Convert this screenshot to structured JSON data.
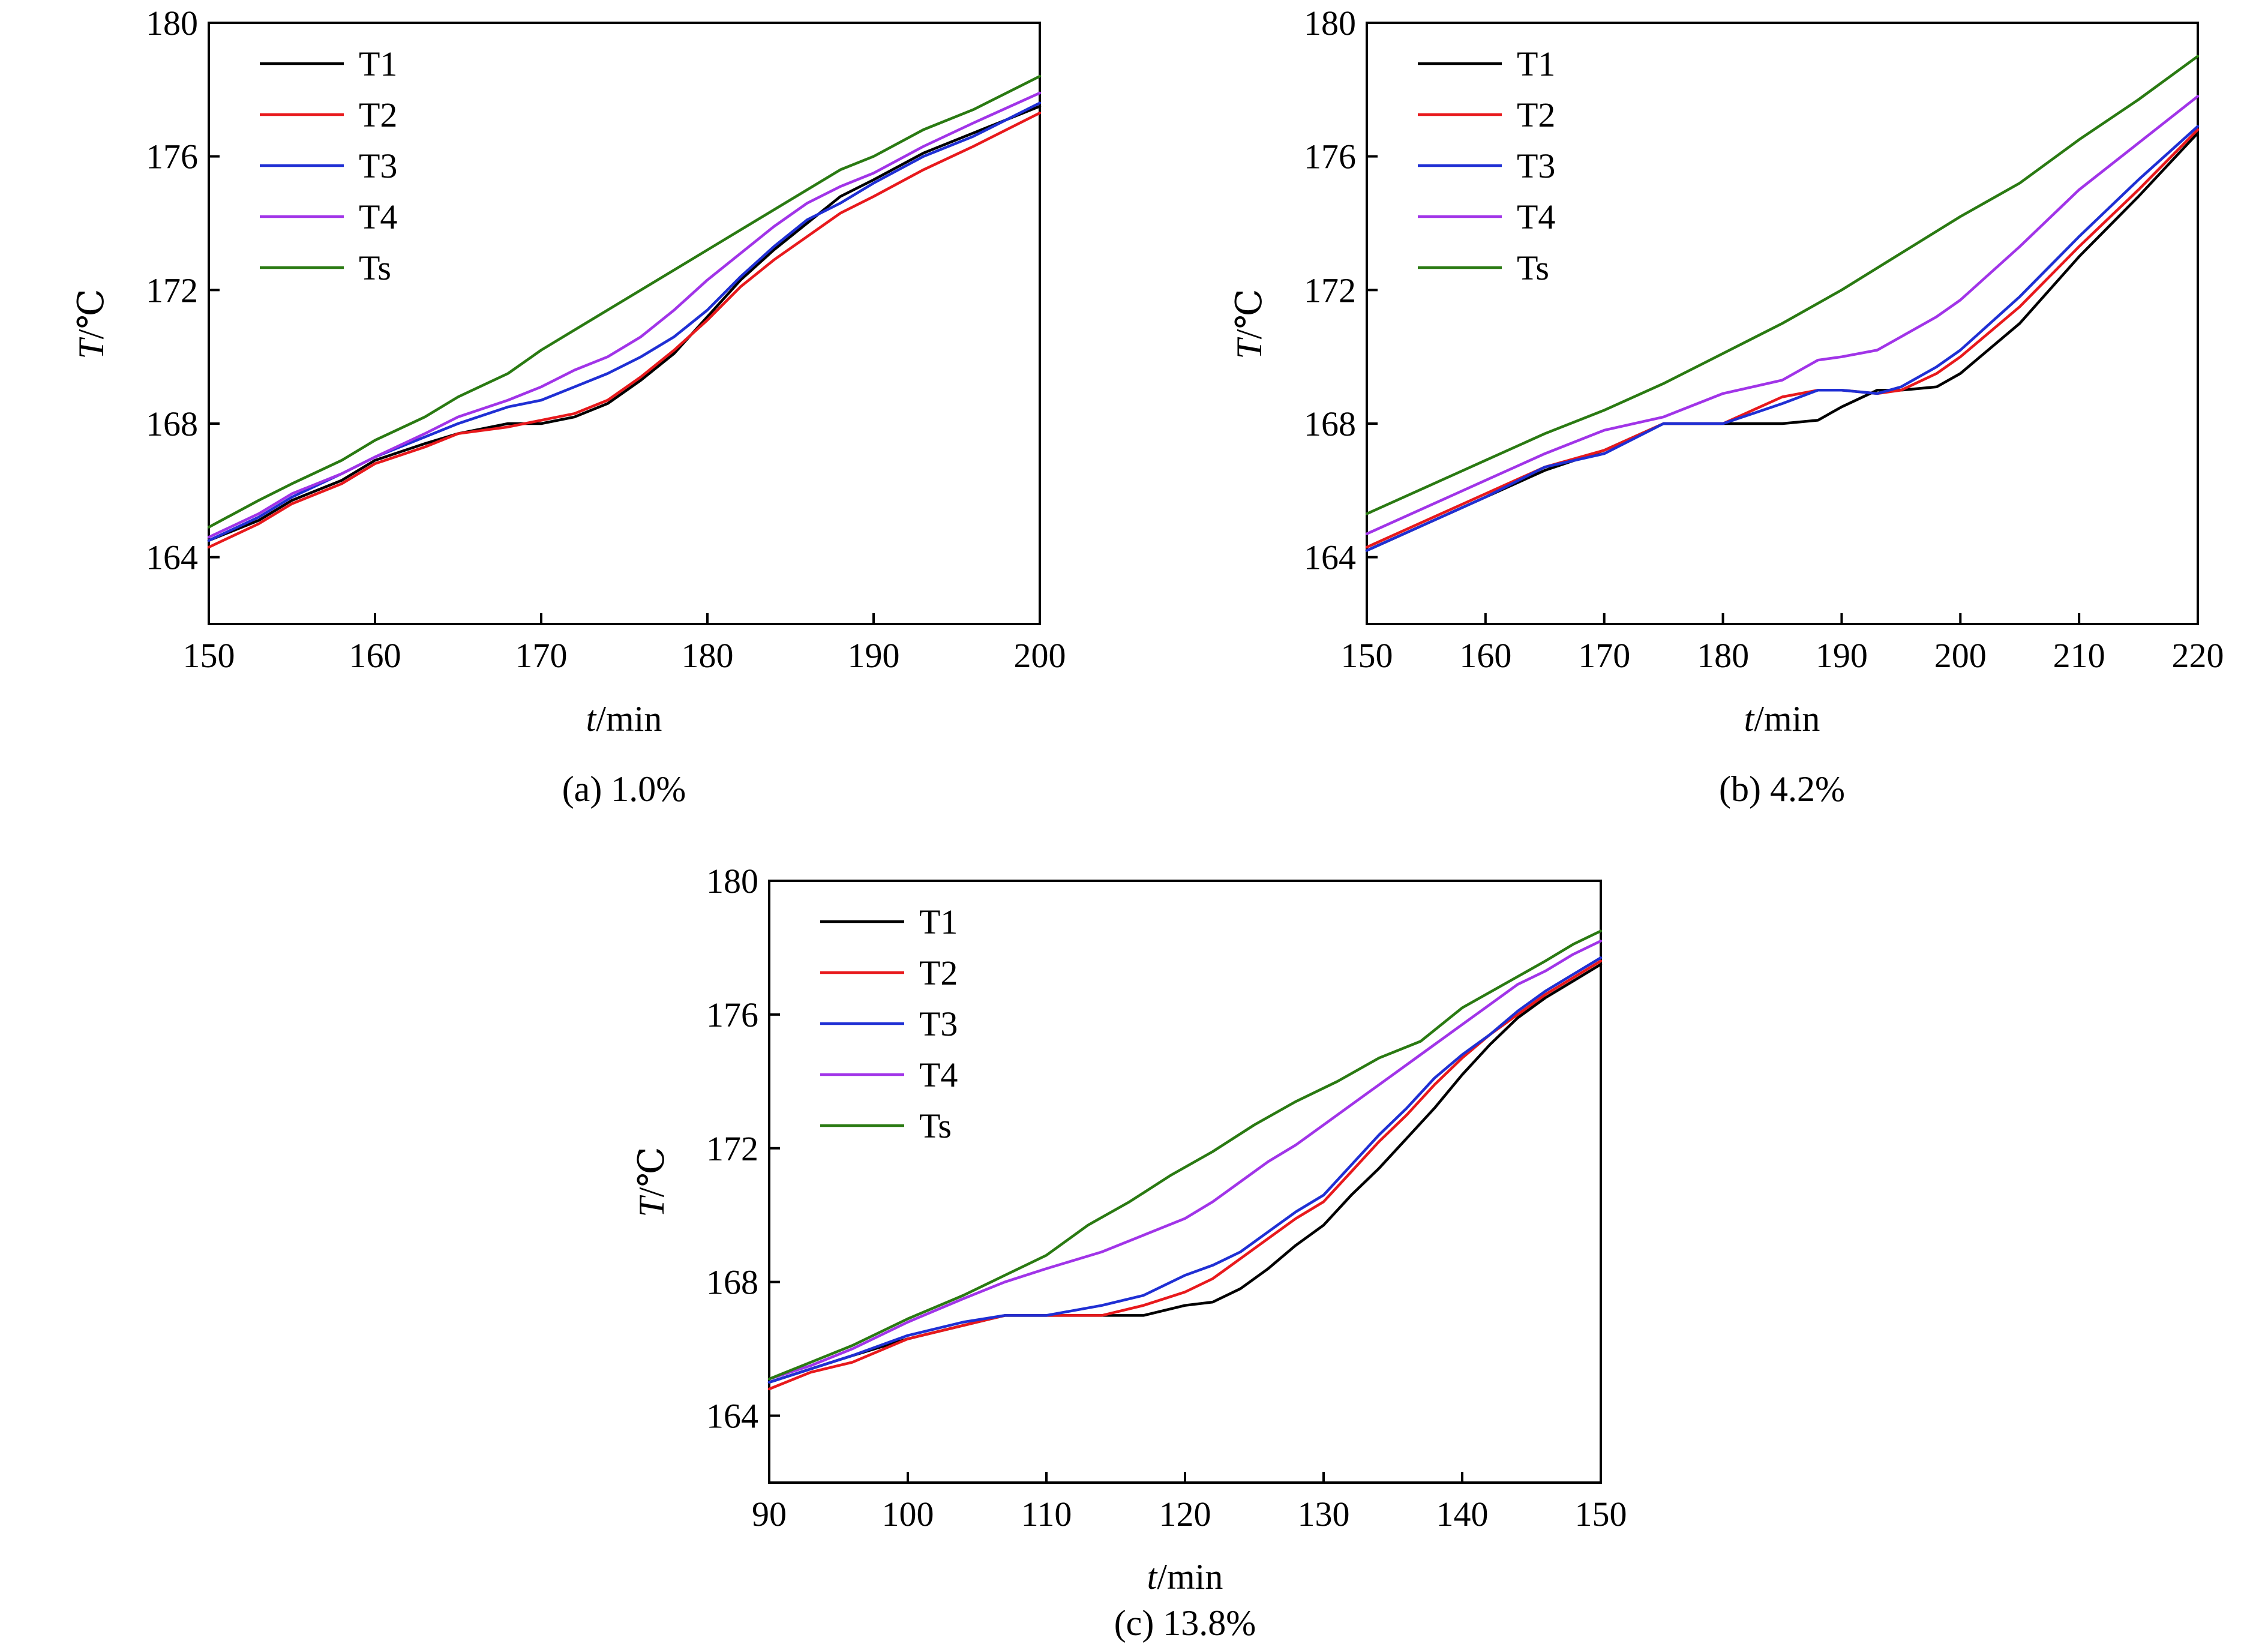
{
  "chart_data": [
    {
      "type": "line",
      "caption": "(a) 1.0%",
      "xlabel_italic": "t",
      "xlabel_unit": "/min",
      "ylabel_italic": "T",
      "ylabel_unit": "/℃",
      "xlim": [
        150,
        200
      ],
      "ylim": [
        162,
        180
      ],
      "x_ticks": [
        150,
        160,
        170,
        180,
        190,
        200
      ],
      "y_ticks": [
        164,
        168,
        172,
        176,
        180
      ],
      "grid": false,
      "legend": "top-left",
      "series": [
        {
          "name": "T1",
          "color": "#000000",
          "x": [
            150,
            153,
            155,
            158,
            160,
            163,
            165,
            168,
            170,
            172,
            174,
            176,
            178,
            180,
            182,
            184,
            186,
            188,
            190,
            193,
            196,
            200
          ],
          "y": [
            164.5,
            165.1,
            165.7,
            166.3,
            166.9,
            167.4,
            167.7,
            168.0,
            168.0,
            168.2,
            168.6,
            169.3,
            170.1,
            171.2,
            172.3,
            173.2,
            174.0,
            174.8,
            175.3,
            176.1,
            176.7,
            177.5
          ]
        },
        {
          "name": "T2",
          "color": "#e8191c",
          "x": [
            150,
            153,
            155,
            158,
            160,
            163,
            165,
            168,
            170,
            172,
            174,
            176,
            178,
            180,
            182,
            184,
            186,
            188,
            190,
            193,
            196,
            200
          ],
          "y": [
            164.3,
            165.0,
            165.6,
            166.2,
            166.8,
            167.3,
            167.7,
            167.9,
            168.1,
            168.3,
            168.7,
            169.4,
            170.2,
            171.1,
            172.1,
            172.9,
            173.6,
            174.3,
            174.8,
            175.6,
            176.3,
            177.3
          ]
        },
        {
          "name": "T3",
          "color": "#1f2fd4",
          "x": [
            150,
            153,
            155,
            158,
            160,
            163,
            165,
            168,
            170,
            172,
            174,
            176,
            178,
            180,
            182,
            184,
            186,
            188,
            190,
            193,
            196,
            200
          ],
          "y": [
            164.5,
            165.2,
            165.8,
            166.5,
            167.0,
            167.6,
            168.0,
            168.5,
            168.7,
            169.1,
            169.5,
            170.0,
            170.6,
            171.4,
            172.4,
            173.3,
            174.1,
            174.6,
            175.2,
            176.0,
            176.6,
            177.6
          ]
        },
        {
          "name": "T4",
          "color": "#a134e8",
          "x": [
            150,
            153,
            155,
            158,
            160,
            163,
            165,
            168,
            170,
            172,
            174,
            176,
            178,
            180,
            182,
            184,
            186,
            188,
            190,
            193,
            196,
            200
          ],
          "y": [
            164.6,
            165.3,
            165.9,
            166.5,
            167.0,
            167.7,
            168.2,
            168.7,
            169.1,
            169.6,
            170.0,
            170.6,
            171.4,
            172.3,
            173.1,
            173.9,
            174.6,
            175.1,
            175.5,
            176.3,
            177.0,
            177.9
          ]
        },
        {
          "name": "Ts",
          "color": "#2a7a12",
          "x": [
            150,
            153,
            155,
            158,
            160,
            163,
            165,
            168,
            170,
            172,
            174,
            176,
            178,
            180,
            182,
            184,
            186,
            188,
            190,
            193,
            196,
            200
          ],
          "y": [
            164.9,
            165.7,
            166.2,
            166.9,
            167.5,
            168.2,
            168.8,
            169.5,
            170.2,
            170.8,
            171.4,
            172.0,
            172.6,
            173.2,
            173.8,
            174.4,
            175.0,
            175.6,
            176.0,
            176.8,
            177.4,
            178.4
          ]
        }
      ]
    },
    {
      "type": "line",
      "caption": "(b) 4.2%",
      "xlabel_italic": "t",
      "xlabel_unit": "/min",
      "ylabel_italic": "T",
      "ylabel_unit": "/℃",
      "xlim": [
        150,
        220
      ],
      "ylim": [
        162,
        180
      ],
      "x_ticks": [
        150,
        160,
        170,
        180,
        190,
        200,
        210,
        220
      ],
      "y_ticks": [
        164,
        168,
        172,
        176,
        180
      ],
      "grid": false,
      "legend": "top-left",
      "series": [
        {
          "name": "T1",
          "color": "#000000",
          "x": [
            150,
            155,
            160,
            165,
            170,
            175,
            180,
            185,
            188,
            190,
            193,
            195,
            198,
            200,
            205,
            210,
            215,
            220
          ],
          "y": [
            164.2,
            165.0,
            165.8,
            166.6,
            167.2,
            168.0,
            168.0,
            168.0,
            168.1,
            168.5,
            169.0,
            169.0,
            169.1,
            169.5,
            171.0,
            173.0,
            174.8,
            176.7
          ]
        },
        {
          "name": "T2",
          "color": "#e8191c",
          "x": [
            150,
            155,
            160,
            165,
            170,
            175,
            180,
            185,
            188,
            190,
            193,
            195,
            198,
            200,
            205,
            210,
            215,
            220
          ],
          "y": [
            164.3,
            165.1,
            165.9,
            166.7,
            167.2,
            168.0,
            168.0,
            168.8,
            169.0,
            169.0,
            168.9,
            169.0,
            169.5,
            170.0,
            171.5,
            173.3,
            175.0,
            176.8
          ]
        },
        {
          "name": "T3",
          "color": "#1f2fd4",
          "x": [
            150,
            155,
            160,
            165,
            170,
            175,
            180,
            185,
            188,
            190,
            193,
            195,
            198,
            200,
            205,
            210,
            215,
            220
          ],
          "y": [
            164.2,
            165.0,
            165.8,
            166.7,
            167.1,
            168.0,
            168.0,
            168.6,
            169.0,
            169.0,
            168.9,
            169.1,
            169.7,
            170.2,
            171.8,
            173.6,
            175.3,
            176.9
          ]
        },
        {
          "name": "T4",
          "color": "#a134e8",
          "x": [
            150,
            155,
            160,
            165,
            170,
            175,
            180,
            185,
            188,
            190,
            193,
            195,
            198,
            200,
            205,
            210,
            215,
            220
          ],
          "y": [
            164.7,
            165.5,
            166.3,
            167.1,
            167.8,
            168.2,
            168.9,
            169.3,
            169.9,
            170.0,
            170.2,
            170.6,
            171.2,
            171.7,
            173.3,
            175.0,
            176.4,
            177.8
          ]
        },
        {
          "name": "Ts",
          "color": "#2a7a12",
          "x": [
            150,
            155,
            160,
            165,
            170,
            175,
            180,
            185,
            190,
            195,
            200,
            205,
            210,
            215,
            220
          ],
          "y": [
            165.3,
            166.1,
            166.9,
            167.7,
            168.4,
            169.2,
            170.1,
            171.0,
            172.0,
            173.1,
            174.2,
            175.2,
            176.5,
            177.7,
            179.0
          ]
        }
      ]
    },
    {
      "type": "line",
      "caption": "(c) 13.8%",
      "xlabel_italic": "t",
      "xlabel_unit": "/min",
      "ylabel_italic": "T",
      "ylabel_unit": "/℃",
      "xlim": [
        90,
        150
      ],
      "ylim": [
        162,
        180
      ],
      "x_ticks": [
        90,
        100,
        110,
        120,
        130,
        140,
        150
      ],
      "y_ticks": [
        164,
        168,
        172,
        176,
        180
      ],
      "grid": false,
      "legend": "top-left",
      "series": [
        {
          "name": "T1",
          "color": "#000000",
          "x": [
            90,
            93,
            96,
            100,
            104,
            107,
            110,
            114,
            117,
            120,
            122,
            124,
            126,
            128,
            130,
            132,
            134,
            136,
            138,
            140,
            142,
            144,
            146,
            148,
            150
          ],
          "y": [
            165.0,
            165.4,
            165.8,
            166.3,
            166.7,
            167.0,
            167.0,
            167.0,
            167.0,
            167.3,
            167.4,
            167.8,
            168.4,
            169.1,
            169.7,
            170.6,
            171.4,
            172.3,
            173.2,
            174.2,
            175.1,
            175.9,
            176.5,
            177.0,
            177.5
          ]
        },
        {
          "name": "T2",
          "color": "#e8191c",
          "x": [
            90,
            93,
            96,
            100,
            104,
            107,
            110,
            114,
            117,
            120,
            122,
            124,
            126,
            128,
            130,
            132,
            134,
            136,
            138,
            140,
            142,
            144,
            146,
            148,
            150
          ],
          "y": [
            164.8,
            165.3,
            165.6,
            166.3,
            166.7,
            167.0,
            167.0,
            167.0,
            167.3,
            167.7,
            168.1,
            168.7,
            169.3,
            169.9,
            170.4,
            171.3,
            172.2,
            173.0,
            173.9,
            174.7,
            175.4,
            176.0,
            176.6,
            177.1,
            177.6
          ]
        },
        {
          "name": "T3",
          "color": "#1f2fd4",
          "x": [
            90,
            93,
            96,
            100,
            104,
            107,
            110,
            114,
            117,
            120,
            122,
            124,
            126,
            128,
            130,
            132,
            134,
            136,
            138,
            140,
            142,
            144,
            146,
            148,
            150
          ],
          "y": [
            165.0,
            165.4,
            165.8,
            166.4,
            166.8,
            167.0,
            167.0,
            167.3,
            167.6,
            168.2,
            168.5,
            168.9,
            169.5,
            170.1,
            170.6,
            171.5,
            172.4,
            173.2,
            174.1,
            174.8,
            175.4,
            176.1,
            176.7,
            177.2,
            177.7
          ]
        },
        {
          "name": "T4",
          "color": "#a134e8",
          "x": [
            90,
            93,
            96,
            100,
            104,
            107,
            110,
            114,
            117,
            120,
            122,
            124,
            126,
            128,
            130,
            132,
            134,
            136,
            138,
            140,
            142,
            144,
            146,
            148,
            150
          ],
          "y": [
            165.1,
            165.5,
            166.0,
            166.8,
            167.5,
            168.0,
            168.4,
            168.9,
            169.4,
            169.9,
            170.4,
            171.0,
            171.6,
            172.1,
            172.7,
            173.3,
            173.9,
            174.5,
            175.1,
            175.7,
            176.3,
            176.9,
            177.3,
            177.8,
            178.2
          ]
        },
        {
          "name": "Ts",
          "color": "#2a7a12",
          "x": [
            90,
            93,
            96,
            100,
            104,
            107,
            110,
            113,
            116,
            119,
            122,
            125,
            128,
            131,
            134,
            137,
            140,
            143,
            146,
            148,
            150
          ],
          "y": [
            165.1,
            165.6,
            166.1,
            166.9,
            167.6,
            168.2,
            168.8,
            169.7,
            170.4,
            171.2,
            171.9,
            172.7,
            173.4,
            174.0,
            174.7,
            175.2,
            176.2,
            176.9,
            177.6,
            178.1,
            178.5
          ]
        }
      ]
    }
  ]
}
